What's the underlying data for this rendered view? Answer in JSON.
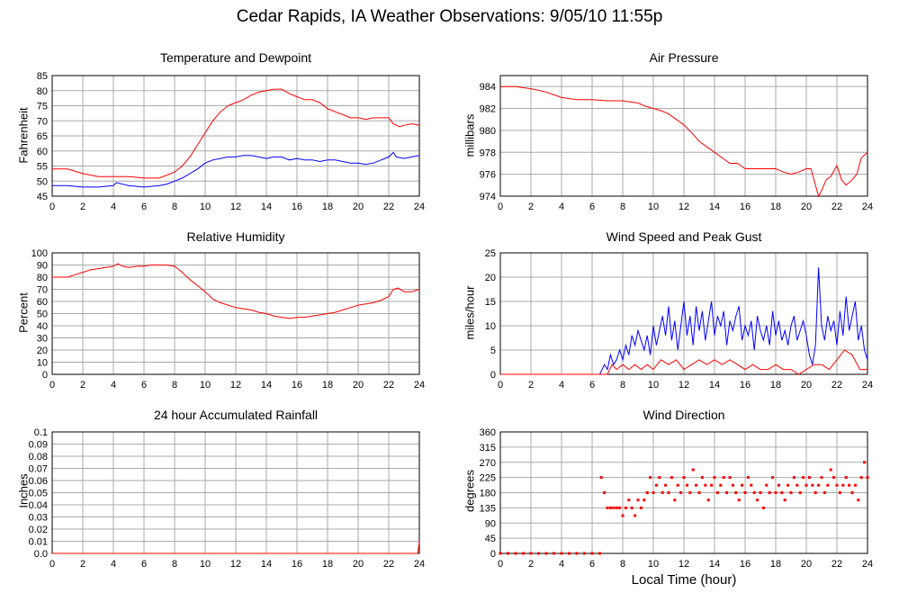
{
  "title": "Cedar Rapids, IA Weather Observations: 9/05/10 11:55p",
  "xlabel_shared": "Local Time (hour)",
  "colors": {
    "red": "#ff0000",
    "blue": "#0000ff",
    "grid": "#aaaaaa"
  },
  "chart_data": [
    {
      "id": "temp",
      "type": "line",
      "title": "Temperature and Dewpoint",
      "ylabel": "Fahrenheit",
      "xlim": [
        0,
        24
      ],
      "ylim": [
        45,
        85
      ],
      "xticks": [
        0,
        2,
        4,
        6,
        8,
        10,
        12,
        14,
        16,
        18,
        20,
        22,
        24
      ],
      "yticks": [
        45,
        50,
        55,
        60,
        65,
        70,
        75,
        80,
        85
      ],
      "grid": true,
      "series": [
        {
          "color": "#ff0000",
          "x": [
            0,
            1,
            2,
            3,
            4,
            5,
            6,
            7,
            7.5,
            8,
            8.5,
            9,
            9.5,
            10,
            10.5,
            11,
            11.5,
            12,
            12.5,
            13,
            13.5,
            14,
            14.5,
            15,
            15.5,
            16,
            16.5,
            17,
            17.5,
            18,
            18.5,
            19,
            19.5,
            20,
            20.5,
            21,
            21.5,
            22,
            22.3,
            22.7,
            23,
            23.5,
            24
          ],
          "y": [
            54,
            54,
            52.5,
            51.5,
            51.5,
            51.5,
            51,
            51,
            52,
            53,
            55,
            58,
            62,
            66,
            70,
            73,
            75,
            76,
            77,
            78.5,
            79.5,
            80,
            80.5,
            80.5,
            79,
            78,
            77,
            77,
            76,
            74,
            73,
            72,
            71,
            71,
            70.5,
            71,
            71,
            71,
            69,
            68,
            68.5,
            69,
            68.5
          ]
        },
        {
          "color": "#0000ff",
          "x": [
            0,
            1,
            2,
            3,
            4,
            4.2,
            5,
            6,
            7,
            7.5,
            8,
            8.5,
            9,
            9.5,
            10,
            10.5,
            11,
            11.5,
            12,
            12.5,
            13,
            13.5,
            14,
            14.5,
            15,
            15.5,
            16,
            16.5,
            17,
            17.5,
            18,
            18.5,
            19,
            19.5,
            20,
            20.5,
            21,
            21.5,
            22,
            22.3,
            22.5,
            23,
            23.5,
            24
          ],
          "y": [
            48.5,
            48.5,
            48,
            48,
            48.5,
            49.5,
            48.5,
            48,
            48.5,
            49,
            50,
            51,
            52.5,
            54,
            56,
            57,
            57.5,
            58,
            58,
            58.5,
            58.5,
            58,
            57.5,
            58,
            58,
            57,
            57.5,
            57,
            57,
            56.5,
            57,
            57,
            56.5,
            56,
            56,
            55.5,
            56,
            57,
            58,
            59.5,
            58,
            57.5,
            58,
            58.5
          ]
        }
      ]
    },
    {
      "id": "pressure",
      "type": "line",
      "title": "Air Pressure",
      "ylabel": "millibars",
      "xlim": [
        0,
        24
      ],
      "ylim": [
        974,
        985
      ],
      "xticks": [
        0,
        2,
        4,
        6,
        8,
        10,
        12,
        14,
        16,
        18,
        20,
        22,
        24
      ],
      "yticks": [
        974,
        976,
        978,
        980,
        982,
        984
      ],
      "grid": true,
      "series": [
        {
          "color": "#ff0000",
          "x": [
            0,
            1,
            2,
            3,
            4,
            5,
            6,
            7,
            8,
            9,
            9.5,
            10,
            10.5,
            11,
            11.5,
            12,
            12.5,
            13,
            13.5,
            14,
            14.5,
            15,
            15.5,
            16,
            16.5,
            17,
            17.5,
            18,
            18.5,
            19,
            19.5,
            20,
            20.3,
            20.6,
            20.8,
            21,
            21.3,
            21.6,
            22,
            22.3,
            22.6,
            23,
            23.3,
            23.6,
            24
          ],
          "y": [
            984,
            984,
            983.8,
            983.5,
            983,
            982.8,
            982.8,
            982.7,
            982.7,
            982.5,
            982.2,
            982,
            981.8,
            981.5,
            981,
            980.5,
            979.8,
            979,
            978.5,
            978,
            977.5,
            977,
            977,
            976.5,
            976.5,
            976.5,
            976.5,
            976.5,
            976.2,
            976,
            976.2,
            976.5,
            976.5,
            975,
            974,
            974.5,
            975.5,
            975.8,
            976.8,
            975.5,
            975,
            975.5,
            976,
            977.5,
            978
          ]
        }
      ]
    },
    {
      "id": "humidity",
      "type": "line",
      "title": "Relative Humidity",
      "ylabel": "Percent",
      "xlim": [
        0,
        24
      ],
      "ylim": [
        0,
        100
      ],
      "xticks": [
        0,
        2,
        4,
        6,
        8,
        10,
        12,
        14,
        16,
        18,
        20,
        22,
        24
      ],
      "yticks": [
        0,
        10,
        20,
        30,
        40,
        50,
        60,
        70,
        80,
        90,
        100
      ],
      "grid": true,
      "series": [
        {
          "color": "#ff0000",
          "x": [
            0,
            0.5,
            1,
            1.5,
            2,
            2.5,
            3,
            3.5,
            4,
            4.3,
            4.6,
            5,
            5.5,
            6,
            6.5,
            7,
            7.5,
            8,
            8.5,
            9,
            9.5,
            10,
            10.5,
            11,
            11.5,
            12,
            12.5,
            13,
            13.5,
            14,
            14.5,
            15,
            15.5,
            16,
            16.5,
            17,
            17.5,
            18,
            18.5,
            19,
            19.5,
            20,
            20.5,
            21,
            21.5,
            22,
            22.3,
            22.6,
            23,
            23.5,
            24
          ],
          "y": [
            80,
            80,
            80,
            82,
            84,
            86,
            87,
            88,
            89,
            91,
            89,
            88,
            89,
            89,
            90,
            90,
            90,
            89,
            84,
            78,
            73,
            68,
            62,
            59,
            57,
            55,
            54,
            53,
            51,
            50,
            48,
            47,
            46,
            47,
            47,
            48,
            49,
            50,
            51,
            53,
            55,
            57,
            58,
            59,
            61,
            64,
            70,
            71,
            68,
            68,
            70
          ]
        }
      ]
    },
    {
      "id": "wind",
      "type": "line",
      "title": "Wind Speed and Peak Gust",
      "ylabel": "miles/hour",
      "xlim": [
        0,
        24
      ],
      "ylim": [
        0,
        25
      ],
      "xticks": [
        0,
        2,
        4,
        6,
        8,
        10,
        12,
        14,
        16,
        18,
        20,
        22,
        24
      ],
      "yticks": [
        0,
        5,
        10,
        15,
        20,
        25
      ],
      "grid": true,
      "series": [
        {
          "color": "#0000ff",
          "x": [
            0,
            6.5,
            6.8,
            7,
            7.2,
            7.4,
            7.6,
            7.8,
            8,
            8.2,
            8.4,
            8.6,
            8.8,
            9,
            9.2,
            9.4,
            9.6,
            9.8,
            10,
            10.2,
            10.4,
            10.6,
            10.8,
            11,
            11.2,
            11.4,
            11.6,
            11.8,
            12,
            12.2,
            12.4,
            12.6,
            12.8,
            13,
            13.2,
            13.4,
            13.6,
            13.8,
            14,
            14.2,
            14.4,
            14.6,
            14.8,
            15,
            15.2,
            15.4,
            15.6,
            15.8,
            16,
            16.2,
            16.4,
            16.6,
            16.8,
            17,
            17.2,
            17.4,
            17.6,
            17.8,
            18,
            18.2,
            18.4,
            18.6,
            18.8,
            19,
            19.2,
            19.4,
            19.6,
            19.8,
            20,
            20.2,
            20.4,
            20.6,
            20.8,
            21,
            21.2,
            21.4,
            21.6,
            21.8,
            22,
            22.2,
            22.4,
            22.6,
            22.8,
            23,
            23.2,
            23.4,
            23.6,
            23.8,
            24
          ],
          "y": [
            0,
            0,
            2,
            1,
            4,
            2,
            3,
            5,
            3,
            6,
            4,
            8,
            6,
            9,
            7,
            5,
            8,
            4,
            10,
            6,
            9,
            12,
            8,
            14,
            7,
            11,
            5,
            10,
            15,
            8,
            12,
            6,
            14,
            9,
            13,
            7,
            11,
            15,
            8,
            12,
            10,
            13,
            6,
            11,
            9,
            12,
            14,
            7,
            10,
            8,
            11,
            5,
            12,
            9,
            7,
            10,
            6,
            13,
            8,
            11,
            7,
            9,
            6,
            10,
            12,
            7,
            9,
            11,
            8,
            4,
            2,
            6,
            22,
            10,
            7,
            12,
            9,
            11,
            6,
            13,
            8,
            16,
            9,
            12,
            15,
            7,
            10,
            5,
            3
          ]
        },
        {
          "color": "#ff0000",
          "x": [
            0,
            6.5,
            7,
            7.3,
            7.6,
            8,
            8.4,
            8.8,
            9.2,
            9.6,
            10,
            10.5,
            11,
            11.5,
            12,
            12.5,
            13,
            13.5,
            14,
            14.5,
            15,
            15.5,
            16,
            16.5,
            17,
            17.5,
            18,
            18.5,
            19,
            19.5,
            20,
            20.5,
            21,
            21.5,
            22,
            22.5,
            23,
            23.5,
            24
          ],
          "y": [
            0,
            0,
            0,
            2,
            1,
            2,
            1,
            2,
            1,
            2,
            1,
            3,
            2,
            3,
            1,
            2,
            3,
            2,
            3,
            2,
            3,
            2,
            1,
            2,
            1,
            1,
            2,
            1,
            1,
            0,
            1,
            2,
            2,
            1,
            3,
            5,
            4,
            1,
            1
          ]
        }
      ]
    },
    {
      "id": "rain",
      "type": "line",
      "title": "24 hour Accumulated Rainfall",
      "ylabel": "Inches",
      "xlim": [
        0,
        24
      ],
      "ylim": [
        0,
        0.1
      ],
      "xticks": [
        0,
        2,
        4,
        6,
        8,
        10,
        12,
        14,
        16,
        18,
        20,
        22,
        24
      ],
      "yticks": [
        0.0,
        0.01,
        0.02,
        0.03,
        0.04,
        0.05,
        0.06,
        0.07,
        0.08,
        0.09,
        0.1
      ],
      "ytick_labels": [
        "0.0",
        "0.01",
        "0.02",
        "0.03",
        "0.04",
        "0.05",
        "0.06",
        "0.07",
        "0.08",
        "0.09",
        "0.1"
      ],
      "grid": true,
      "series": [
        {
          "color": "#ff0000",
          "x": [
            0,
            23.9,
            24
          ],
          "y": [
            0,
            0,
            0.01
          ]
        }
      ]
    },
    {
      "id": "direction",
      "type": "scatter",
      "title": "Wind Direction",
      "ylabel": "degrees",
      "xlim": [
        0,
        24
      ],
      "ylim": [
        0,
        360
      ],
      "xticks": [
        0,
        2,
        4,
        6,
        8,
        10,
        12,
        14,
        16,
        18,
        20,
        22,
        24
      ],
      "yticks": [
        0,
        45,
        90,
        135,
        180,
        225,
        270,
        315,
        360
      ],
      "grid": true,
      "series": [
        {
          "color": "#ff0000",
          "x": [
            0,
            0.5,
            1,
            1.5,
            2,
            2.5,
            3,
            3.5,
            4,
            4.5,
            5,
            5.5,
            6,
            6.5,
            6.6,
            6.8,
            7,
            7.2,
            7.4,
            7.6,
            7.8,
            8,
            8.2,
            8.4,
            8.6,
            8.8,
            9,
            9.2,
            9.4,
            9.6,
            9.8,
            10,
            10.2,
            10.4,
            10.6,
            10.8,
            11,
            11.2,
            11.4,
            11.6,
            11.8,
            12,
            12.2,
            12.4,
            12.6,
            12.8,
            13,
            13.2,
            13.4,
            13.6,
            13.8,
            14,
            14.2,
            14.4,
            14.6,
            14.8,
            15,
            15.2,
            15.4,
            15.6,
            15.8,
            16,
            16.2,
            16.4,
            16.6,
            16.8,
            17,
            17.2,
            17.4,
            17.6,
            17.8,
            18,
            18.2,
            18.4,
            18.6,
            18.8,
            19,
            19.2,
            19.4,
            19.6,
            19.8,
            20,
            20.2,
            20.4,
            20.6,
            20.8,
            21,
            21.2,
            21.4,
            21.6,
            21.8,
            22,
            22.2,
            22.4,
            22.6,
            22.8,
            23,
            23.2,
            23.4,
            23.6,
            23.8,
            24
          ],
          "y": [
            0,
            0,
            0,
            0,
            0,
            0,
            0,
            0,
            0,
            0,
            0,
            0,
            0,
            0,
            225,
            180,
            135,
            135,
            135,
            135,
            135,
            112,
            135,
            158,
            135,
            112,
            158,
            135,
            158,
            180,
            225,
            180,
            202,
            225,
            180,
            202,
            180,
            225,
            158,
            202,
            180,
            225,
            202,
            180,
            248,
            202,
            180,
            225,
            202,
            158,
            202,
            225,
            180,
            202,
            225,
            180,
            225,
            202,
            180,
            158,
            202,
            180,
            225,
            202,
            180,
            158,
            180,
            135,
            202,
            180,
            225,
            180,
            202,
            180,
            158,
            202,
            180,
            225,
            202,
            180,
            225,
            202,
            225,
            202,
            180,
            202,
            225,
            180,
            202,
            248,
            225,
            202,
            180,
            202,
            225,
            202,
            180,
            202,
            158,
            225,
            270,
            225
          ]
        }
      ]
    }
  ]
}
